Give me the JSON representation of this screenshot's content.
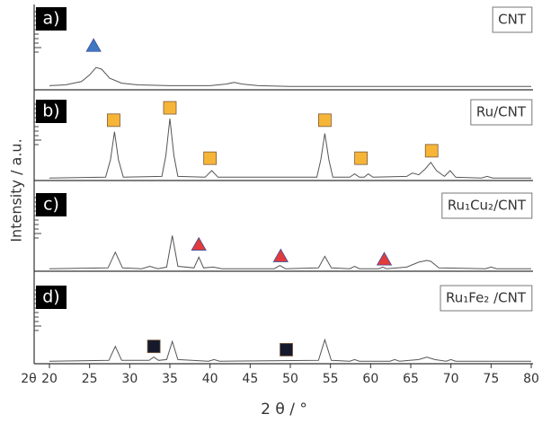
{
  "chart_data": {
    "type": "line",
    "xlabel": "2 θ / °",
    "ylabel": "Intensity / a.u.",
    "x_symbol": "2θ",
    "xlim": [
      20,
      80
    ],
    "xticks": [
      20,
      25,
      30,
      35,
      40,
      45,
      50,
      55,
      60,
      65,
      70,
      75,
      80
    ],
    "line_color": "#555555",
    "series": [
      {
        "label": "a)",
        "name": "CNT",
        "ylim": [
          0,
          100
        ],
        "x": [
          20,
          22,
          24,
          25,
          25.8,
          26.5,
          27.5,
          29,
          31,
          35,
          40,
          42,
          43,
          44,
          46,
          50,
          60,
          70,
          80
        ],
        "values": [
          5,
          6,
          10,
          18,
          27,
          25,
          14,
          8,
          6,
          5,
          5,
          7,
          9,
          7,
          5,
          4,
          4,
          4,
          4
        ],
        "markers": {
          "shape": "triangle",
          "color": "#3f78c2",
          "x": [
            25.5
          ],
          "y": [
            53
          ]
        }
      },
      {
        "label": "b)",
        "name": "Ru/CNT",
        "ylim": [
          0,
          100
        ],
        "x": [
          20,
          27,
          27.6,
          28.1,
          28.6,
          29.2,
          34,
          34.5,
          35,
          35.5,
          36,
          39.4,
          40.2,
          41,
          53.3,
          53.8,
          54.3,
          54.8,
          55.3,
          57.4,
          58,
          58.6,
          59.2,
          59.7,
          60.3,
          64.5,
          65.2,
          66,
          66.8,
          67.5,
          68.2,
          69.2,
          69.9,
          70.6,
          73.8,
          74.5,
          75.2,
          80
        ],
        "values": [
          3,
          4,
          25,
          59,
          25,
          4,
          5,
          30,
          75,
          30,
          5,
          4,
          12,
          4,
          4,
          25,
          57,
          25,
          4,
          4,
          8,
          4,
          4,
          8,
          4,
          5,
          9,
          7,
          14,
          22,
          12,
          5,
          12,
          4,
          3,
          5,
          3,
          3
        ],
        "markers": {
          "shape": "square",
          "color": "#f7b538",
          "x": [
            28,
            35,
            40,
            54.3,
            58.8,
            67.6
          ],
          "y": [
            73,
            88,
            27,
            73,
            27,
            36
          ]
        }
      },
      {
        "label": "c)",
        "name": "Ru₁Cu₂/CNT",
        "ylim": [
          0,
          100
        ],
        "x": [
          20,
          27.3,
          28.2,
          29.1,
          31.5,
          32.5,
          33.5,
          34.6,
          35.3,
          36,
          38,
          38.6,
          39.2,
          40.4,
          41.5,
          48,
          48.7,
          49.4,
          53.5,
          54.3,
          55.1,
          57.4,
          58,
          58.6,
          61,
          61.5,
          62,
          64.5,
          66,
          67,
          67.5,
          68.5,
          74.3,
          75,
          75.7,
          80
        ],
        "values": [
          3,
          4,
          23,
          4,
          3,
          6,
          3,
          5,
          43,
          6,
          4,
          17,
          4,
          5,
          3,
          3,
          7,
          3,
          4,
          18,
          4,
          3,
          6,
          3,
          3,
          5,
          3,
          5,
          11,
          13,
          12,
          4,
          3,
          5,
          3,
          3
        ],
        "markers": {
          "shape": "triangle",
          "color": "#e23b3b",
          "x": [
            38.6,
            48.8,
            61.7
          ],
          "y": [
            32,
            18,
            14
          ]
        }
      },
      {
        "label": "d)",
        "name": "Ru₁Fe₂ /CNT",
        "ylim": [
          0,
          100
        ],
        "x": [
          20,
          27.4,
          28.2,
          29,
          32.4,
          33,
          33.6,
          34.6,
          35.3,
          36,
          39.8,
          40.5,
          41.2,
          53.5,
          54.3,
          55.1,
          57.4,
          58,
          58.6,
          62.4,
          63,
          63.6,
          66,
          67,
          68,
          69.4,
          70,
          70.6,
          80
        ],
        "values": [
          3,
          4,
          21,
          4,
          4,
          8,
          4,
          5,
          27,
          5,
          3,
          5,
          3,
          4,
          29,
          4,
          3,
          5,
          3,
          3,
          5,
          3,
          5,
          8,
          5,
          3,
          5,
          3,
          3
        ],
        "markers": {
          "shape": "square",
          "color": "#15192b",
          "x": [
            33,
            49.5
          ],
          "y": [
            21,
            17
          ]
        }
      }
    ]
  }
}
